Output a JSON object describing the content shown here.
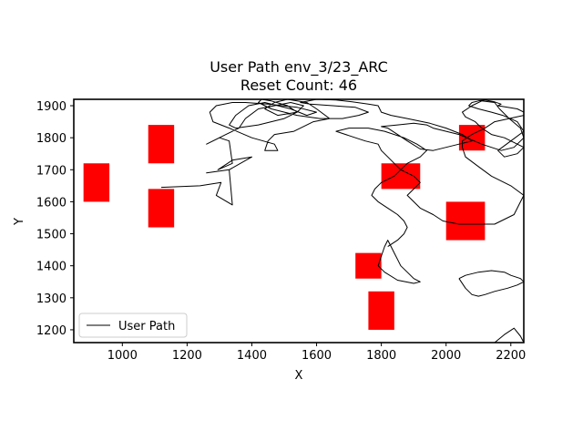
{
  "chart_data": {
    "type": "line",
    "title": "User Path env_3/23_ARC",
    "subtitle": "Reset Count: 46",
    "xlabel": "X",
    "ylabel": "Y",
    "xlim": [
      850,
      2240
    ],
    "ylim": [
      1160,
      1920
    ],
    "x_ticks": [
      1000,
      1200,
      1400,
      1600,
      1800,
      2000,
      2200
    ],
    "y_ticks": [
      1200,
      1300,
      1400,
      1500,
      1600,
      1700,
      1800,
      1900
    ],
    "grid": false,
    "legend": {
      "placement": "lower-left",
      "entries": [
        "User Path"
      ]
    },
    "colors": {
      "path": "#000000",
      "obstacle": "#ff0000"
    },
    "obstacles": [
      {
        "x": [
          880,
          960
        ],
        "y": [
          1600,
          1720
        ]
      },
      {
        "x": [
          1080,
          1160
        ],
        "y": [
          1720,
          1840
        ]
      },
      {
        "x": [
          1080,
          1160
        ],
        "y": [
          1520,
          1640
        ]
      },
      {
        "x": [
          1800,
          1920
        ],
        "y": [
          1640,
          1720
        ]
      },
      {
        "x": [
          2040,
          2120
        ],
        "y": [
          1760,
          1840
        ]
      },
      {
        "x": [
          2000,
          2120
        ],
        "y": [
          1480,
          1600
        ]
      },
      {
        "x": [
          1720,
          1800
        ],
        "y": [
          1360,
          1440
        ]
      },
      {
        "x": [
          1760,
          1840
        ],
        "y": [
          1200,
          1320
        ]
      }
    ],
    "series": [
      {
        "name": "User Path",
        "x": [
          1120,
          1240,
          1305,
          1290,
          1340,
          1330,
          1260,
          1330,
          1400,
          1340,
          1295,
          1340,
          1330,
          1300,
          1260,
          1320,
          1360,
          1380,
          1420,
          1470,
          1520,
          1560,
          1540,
          1480,
          1440,
          1470,
          1510,
          1570,
          1600,
          1640,
          1590,
          1530,
          1470,
          1450,
          1440,
          1480,
          1470,
          1400,
          1330,
          1280,
          1270,
          1290,
          1340,
          1380,
          1450,
          1540,
          1600,
          1570,
          1520,
          1440,
          1390,
          1350,
          1330,
          1350,
          1420,
          1500,
          1540,
          1510,
          1460,
          1430,
          1420,
          1460,
          1540,
          1610,
          1680,
          1730,
          1760,
          1720,
          1650,
          1580,
          1550,
          1600,
          1660,
          1710,
          1760,
          1790,
          1800,
          1830,
          1880,
          1950,
          2000,
          2050,
          2080,
          2040,
          2000,
          1960,
          1920,
          1880,
          1850,
          1820,
          1800,
          1850,
          1900,
          1940,
          1960,
          2040,
          2110,
          2170,
          2210,
          2240,
          2230,
          2195,
          2165,
          2150,
          2110,
          2080,
          2050,
          2060,
          2090,
          2110,
          2140,
          2180,
          2200,
          2240,
          2220,
          2180,
          2160,
          2200,
          2240,
          2220,
          2175,
          2140,
          2100,
          2070,
          2080,
          2100,
          2120,
          2150,
          2170,
          2160,
          2220,
          2240,
          2240,
          2150,
          2120,
          2080,
          2050,
          2050,
          2060,
          2100,
          2140,
          2200,
          2240,
          2230,
          2220,
          2210,
          2170,
          2150,
          2040,
          1990,
          1960,
          1920,
          1900,
          1880,
          1900,
          1920,
          1900,
          1860,
          1840,
          1820,
          1800,
          1790,
          1750,
          1720,
          1690,
          1660,
          1700,
          1760,
          1810,
          1870,
          1910,
          1940,
          1920,
          1880,
          1860,
          1840,
          1800,
          1780,
          1770,
          1790,
          1820,
          1850,
          1870,
          1880,
          1870,
          1850,
          1820
        ],
        "y": [
          1645,
          1650,
          1660,
          1620,
          1590,
          1700,
          1690,
          1700,
          1740,
          1730,
          1700,
          1720,
          1790,
          1800,
          1780,
          1810,
          1830,
          1860,
          1890,
          1900,
          1910,
          1900,
          1880,
          1870,
          1890,
          1910,
          1920,
          1910,
          1890,
          1860,
          1850,
          1820,
          1810,
          1790,
          1760,
          1760,
          1780,
          1800,
          1830,
          1850,
          1880,
          1900,
          1910,
          1910,
          1905,
          1895,
          1880,
          1870,
          1890,
          1910,
          1900,
          1870,
          1840,
          1830,
          1840,
          1860,
          1880,
          1900,
          1915,
          1920,
          1910,
          1890,
          1870,
          1860,
          1860,
          1870,
          1880,
          1895,
          1900,
          1905,
          1910,
          1920,
          1918,
          1912,
          1905,
          1900,
          1880,
          1870,
          1860,
          1845,
          1830,
          1810,
          1790,
          1780,
          1770,
          1760,
          1765,
          1790,
          1810,
          1830,
          1835,
          1840,
          1845,
          1840,
          1830,
          1810,
          1780,
          1760,
          1770,
          1800,
          1830,
          1860,
          1890,
          1910,
          1915,
          1900,
          1880,
          1865,
          1850,
          1830,
          1810,
          1800,
          1790,
          1770,
          1750,
          1740,
          1760,
          1790,
          1820,
          1850,
          1870,
          1880,
          1890,
          1900,
          1910,
          1915,
          1918,
          1912,
          1905,
          1900,
          1890,
          1880,
          1870,
          1850,
          1830,
          1810,
          1790,
          1770,
          1740,
          1710,
          1680,
          1650,
          1620,
          1600,
          1580,
          1560,
          1540,
          1530,
          1530,
          1540,
          1560,
          1580,
          1600,
          1620,
          1640,
          1660,
          1680,
          1700,
          1720,
          1740,
          1760,
          1780,
          1790,
          1800,
          1810,
          1820,
          1830,
          1830,
          1820,
          1800,
          1780,
          1760,
          1740,
          1720,
          1700,
          1680,
          1660,
          1640,
          1620,
          1600,
          1580,
          1560,
          1540,
          1520,
          1500,
          1480,
          1460
        ]
      },
      {
        "name": "",
        "x": [
          1790,
          1810,
          1850,
          1900,
          1920,
          1900,
          1880,
          1860,
          1850,
          1840,
          1830,
          1820,
          1810,
          1800,
          1790
        ],
        "y": [
          1400,
          1380,
          1355,
          1345,
          1350,
          1360,
          1380,
          1400,
          1420,
          1440,
          1460,
          1480,
          1460,
          1430,
          1400
        ]
      },
      {
        "name": "",
        "x": [
          2040,
          2060,
          2100,
          2140,
          2180,
          2200,
          2230,
          2240,
          2220,
          2190,
          2150,
          2120,
          2100,
          2080,
          2060,
          2040
        ],
        "y": [
          1360,
          1370,
          1380,
          1385,
          1380,
          1370,
          1360,
          1350,
          1340,
          1330,
          1320,
          1310,
          1305,
          1310,
          1330,
          1360
        ]
      },
      {
        "name": "",
        "x": [
          2150,
          2180,
          2210,
          2230,
          2240
        ],
        "y": [
          1160,
          1185,
          1205,
          1180,
          1160
        ]
      }
    ]
  }
}
